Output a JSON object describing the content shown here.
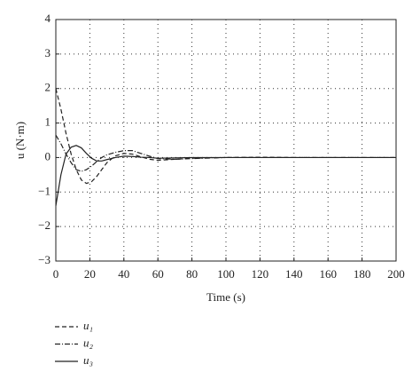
{
  "chart_data": {
    "type": "line",
    "xlabel": "Time (s)",
    "ylabel": "u (N·m)",
    "x": [
      0,
      3,
      6,
      9,
      12,
      15,
      18,
      21,
      24,
      27,
      30,
      35,
      40,
      45,
      50,
      55,
      60,
      70,
      80,
      100,
      120,
      140,
      160,
      180,
      200
    ],
    "series": [
      {
        "name": "u₁",
        "color": "#222",
        "dash": "dashed",
        "values": [
          2.0,
          1.4,
          0.7,
          0.1,
          -0.35,
          -0.65,
          -0.75,
          -0.7,
          -0.55,
          -0.35,
          -0.15,
          0.05,
          0.12,
          0.1,
          0.02,
          -0.05,
          -0.08,
          -0.05,
          -0.02,
          0,
          0.01,
          0,
          0,
          0,
          0
        ]
      },
      {
        "name": "u₂",
        "color": "#222",
        "dash": "dashdot",
        "values": [
          0.65,
          0.4,
          0.1,
          -0.15,
          -0.35,
          -0.4,
          -0.35,
          -0.25,
          -0.12,
          0,
          0.08,
          0.15,
          0.2,
          0.2,
          0.12,
          0.04,
          -0.03,
          -0.05,
          -0.03,
          0,
          0,
          0,
          0,
          0,
          0
        ]
      },
      {
        "name": "u₃",
        "color": "#222",
        "dash": "solid",
        "values": [
          -1.4,
          -0.5,
          0.1,
          0.3,
          0.35,
          0.28,
          0.12,
          -0.02,
          -0.1,
          -0.1,
          -0.06,
          0,
          0.04,
          0.03,
          0.01,
          0,
          -0.02,
          -0.01,
          0,
          0,
          0,
          0,
          0,
          0,
          0
        ]
      }
    ],
    "xlim": [
      0,
      200
    ],
    "xticks": [
      0,
      20,
      40,
      60,
      80,
      100,
      120,
      140,
      160,
      180,
      200
    ],
    "ylim": [
      -3,
      4
    ],
    "yticks": [
      {
        "value": -3,
        "label": "−3"
      },
      {
        "value": -2,
        "label": "−2"
      },
      {
        "value": -1,
        "label": "−1"
      },
      0,
      1,
      2,
      3,
      4
    ],
    "grid": true,
    "legend": "below"
  }
}
